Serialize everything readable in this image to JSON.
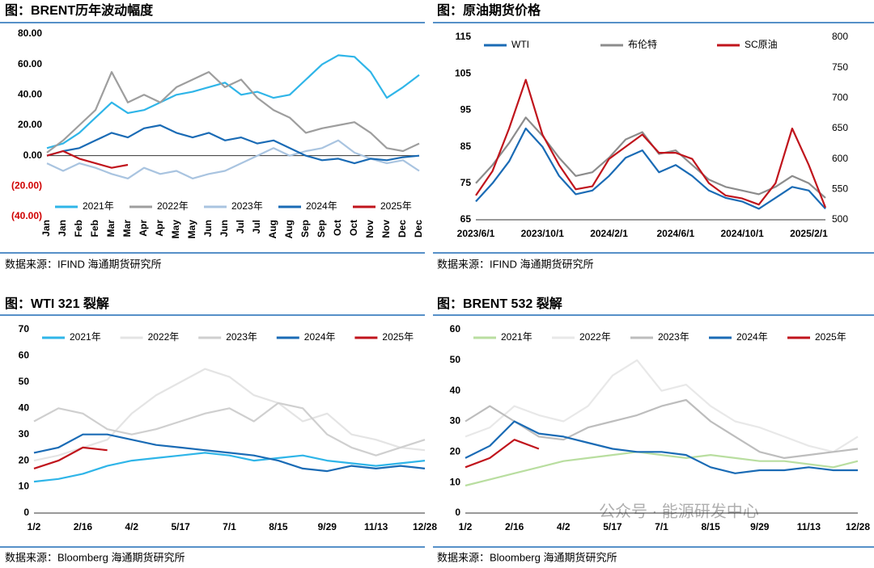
{
  "chart_data": [
    {
      "type": "line",
      "title": "图：BRENT历年波动幅度",
      "source": "数据来源：IFIND   海通期货研究所",
      "legend": "bottom",
      "categories": [
        "Jan",
        "Jan",
        "Feb",
        "Feb",
        "Mar",
        "Mar",
        "Apr",
        "Apr",
        "May",
        "May",
        "Jun",
        "Jun",
        "Jul",
        "Jul",
        "Aug",
        "Aug",
        "Sep",
        "Sep",
        "Oct",
        "Oct",
        "Nov",
        "Nov",
        "Dec",
        "Dec"
      ],
      "ylim": [
        -40,
        80
      ],
      "yticks": [
        {
          "value": 80,
          "label": "80.00"
        },
        {
          "value": 60,
          "label": "60.00"
        },
        {
          "value": 40,
          "label": "40.00"
        },
        {
          "value": 20,
          "label": "20.00"
        },
        {
          "value": 0,
          "label": "0.00"
        },
        {
          "value": -20,
          "label": "(20.00)"
        },
        {
          "value": -40,
          "label": "(40.00)"
        }
      ],
      "series": [
        {
          "name": "2021年",
          "color": "#2fb5e8",
          "values": [
            5,
            8,
            15,
            25,
            35,
            28,
            30,
            35,
            40,
            42,
            45,
            48,
            40,
            42,
            38,
            40,
            50,
            60,
            66,
            65,
            55,
            38,
            45,
            53
          ]
        },
        {
          "name": "2022年",
          "color": "#9e9e9e",
          "values": [
            2,
            10,
            20,
            30,
            55,
            35,
            40,
            35,
            45,
            50,
            55,
            45,
            50,
            38,
            30,
            25,
            15,
            18,
            20,
            22,
            15,
            5,
            3,
            8
          ]
        },
        {
          "name": "2023年",
          "color": "#a9c4e0",
          "values": [
            -5,
            -10,
            -5,
            -8,
            -12,
            -15,
            -8,
            -12,
            -10,
            -15,
            -12,
            -10,
            -5,
            0,
            5,
            0,
            3,
            5,
            10,
            2,
            -2,
            -5,
            -3,
            -10
          ]
        },
        {
          "name": "2024年",
          "color": "#1a6bb5",
          "values": [
            0,
            3,
            5,
            10,
            15,
            12,
            18,
            20,
            15,
            12,
            15,
            10,
            12,
            8,
            10,
            5,
            0,
            -3,
            -2,
            -5,
            -2,
            -3,
            -1,
            0
          ]
        },
        {
          "name": "2025年",
          "color": "#c0141c",
          "values": [
            0,
            3,
            -2,
            -5,
            -8,
            -6,
            null,
            null,
            null,
            null,
            null,
            null,
            null,
            null,
            null,
            null,
            null,
            null,
            null,
            null,
            null,
            null,
            null,
            null
          ]
        }
      ]
    },
    {
      "type": "line",
      "title": "图：原油期货价格",
      "source": "数据来源：IFIND   海通期货研究所",
      "legend": "top",
      "categories": [
        "2023/6/1",
        null,
        null,
        null,
        "2023/10/1",
        null,
        null,
        null,
        "2024/2/1",
        null,
        null,
        null,
        "2024/6/1",
        null,
        null,
        null,
        "2024/10/1",
        null,
        null,
        null,
        "2025/2/1",
        null
      ],
      "ylim": [
        65,
        115
      ],
      "yticks": [
        65,
        75,
        85,
        95,
        105,
        115
      ],
      "y2lim": [
        500,
        800
      ],
      "y2ticks": [
        500,
        550,
        600,
        650,
        700,
        750,
        800
      ],
      "series": [
        {
          "name": "WTI",
          "color": "#1a6bb5",
          "values": [
            70,
            75,
            81,
            90,
            85,
            77,
            72,
            73,
            77,
            82,
            84,
            78,
            80,
            77,
            73,
            71,
            70,
            68,
            71,
            74,
            73,
            68
          ]
        },
        {
          "name": "布伦特",
          "color": "#8c8c8c",
          "values": [
            75,
            80,
            86,
            93,
            88,
            82,
            77,
            78,
            82,
            87,
            89,
            83,
            84,
            80,
            76,
            74,
            73,
            72,
            74,
            77,
            75,
            71
          ]
        },
        {
          "name": "SC原油",
          "color": "#c0141c",
          "axis": "y2",
          "values": [
            540,
            580,
            650,
            730,
            640,
            590,
            550,
            555,
            600,
            620,
            640,
            610,
            610,
            600,
            560,
            540,
            535,
            525,
            560,
            650,
            590,
            520
          ]
        }
      ]
    },
    {
      "type": "line",
      "title": "图：WTI 321 裂解",
      "source": "数据来源：Bloomberg   海通期货研究所",
      "legend": "top",
      "categories": [
        "1/2",
        null,
        "2/16",
        null,
        "4/2",
        null,
        "5/17",
        null,
        "7/1",
        null,
        "8/15",
        null,
        "9/29",
        null,
        "11/13",
        null,
        "12/28"
      ],
      "ylim": [
        0,
        70
      ],
      "yticks": [
        0,
        10,
        20,
        30,
        40,
        50,
        60,
        70
      ],
      "series": [
        {
          "name": "2021年",
          "color": "#2fb5e8",
          "values": [
            12,
            13,
            15,
            18,
            20,
            21,
            22,
            23,
            22,
            20,
            21,
            22,
            20,
            19,
            18,
            19,
            20
          ]
        },
        {
          "name": "2022年",
          "color": "#e4e4e4",
          "values": [
            20,
            22,
            25,
            28,
            38,
            45,
            50,
            55,
            52,
            45,
            42,
            35,
            38,
            30,
            28,
            25,
            24
          ]
        },
        {
          "name": "2023年",
          "color": "#cfcfcf",
          "values": [
            35,
            40,
            38,
            32,
            30,
            32,
            35,
            38,
            40,
            35,
            42,
            40,
            30,
            25,
            22,
            25,
            28
          ]
        },
        {
          "name": "2024年",
          "color": "#1a6bb5",
          "values": [
            23,
            25,
            30,
            30,
            28,
            26,
            25,
            24,
            23,
            22,
            20,
            17,
            16,
            18,
            17,
            18,
            17
          ]
        },
        {
          "name": "2025年",
          "color": "#c0141c",
          "values": [
            17,
            20,
            25,
            24,
            null,
            null,
            null,
            null,
            null,
            null,
            null,
            null,
            null,
            null,
            null,
            null,
            null
          ]
        }
      ]
    },
    {
      "type": "line",
      "title": "图：BRENT 532 裂解",
      "source": "数据来源：Bloomberg   海通期货研究所",
      "legend": "top",
      "categories": [
        "1/2",
        null,
        "2/16",
        null,
        "4/2",
        null,
        "5/17",
        null,
        "7/1",
        null,
        "8/15",
        null,
        "9/29",
        null,
        "11/13",
        null,
        "12/28"
      ],
      "ylim": [
        0,
        60
      ],
      "yticks": [
        0,
        10,
        20,
        30,
        40,
        50,
        60
      ],
      "series": [
        {
          "name": "2021年",
          "color": "#b9dea0",
          "values": [
            9,
            11,
            13,
            15,
            17,
            18,
            19,
            20,
            19,
            18,
            19,
            18,
            17,
            17,
            16,
            15,
            17
          ]
        },
        {
          "name": "2022年",
          "color": "#e8e8e8",
          "values": [
            25,
            28,
            35,
            32,
            30,
            35,
            45,
            50,
            40,
            42,
            35,
            30,
            28,
            25,
            22,
            20,
            25
          ]
        },
        {
          "name": "2023年",
          "color": "#bdbdbd",
          "values": [
            30,
            35,
            30,
            25,
            24,
            28,
            30,
            32,
            35,
            37,
            30,
            25,
            20,
            18,
            19,
            20,
            21
          ]
        },
        {
          "name": "2024年",
          "color": "#1a6bb5",
          "values": [
            18,
            22,
            30,
            26,
            25,
            23,
            21,
            20,
            20,
            19,
            15,
            13,
            14,
            14,
            15,
            14,
            14
          ]
        },
        {
          "name": "2025年",
          "color": "#c0141c",
          "values": [
            15,
            18,
            24,
            21,
            null,
            null,
            null,
            null,
            null,
            null,
            null,
            null,
            null,
            null,
            null,
            null,
            null
          ]
        }
      ]
    }
  ],
  "watermark": "公众号 · 能源研发中心"
}
